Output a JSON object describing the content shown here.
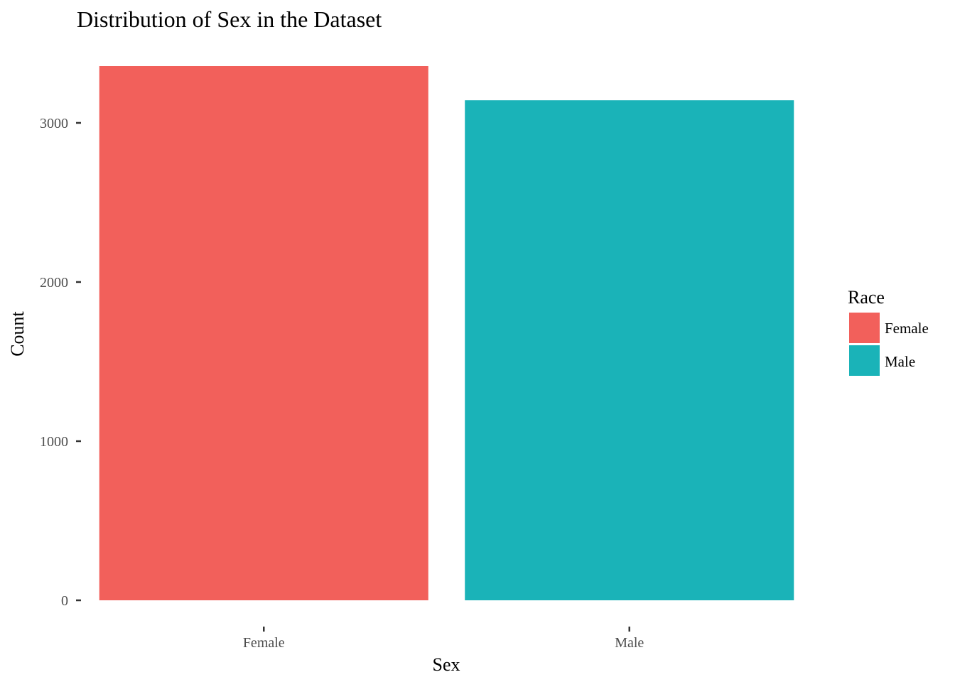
{
  "chart_data": {
    "type": "bar",
    "title": "Distribution of Sex in the Dataset",
    "xlabel": "Sex",
    "ylabel": "Count",
    "categories": [
      "Female",
      "Male"
    ],
    "values": [
      3357,
      3142
    ],
    "colors": [
      "#F2605B",
      "#1AB3B8"
    ],
    "ylim": [
      0,
      3357
    ],
    "yticks": [
      0,
      1000,
      2000,
      3000
    ],
    "ytick_labels": [
      "0",
      "1000",
      "2000",
      "3000"
    ],
    "grid": false,
    "legend": {
      "title": "Race",
      "position": "right",
      "entries": [
        {
          "label": "Female",
          "color": "#F2605B"
        },
        {
          "label": "Male",
          "color": "#1AB3B8"
        }
      ]
    }
  }
}
